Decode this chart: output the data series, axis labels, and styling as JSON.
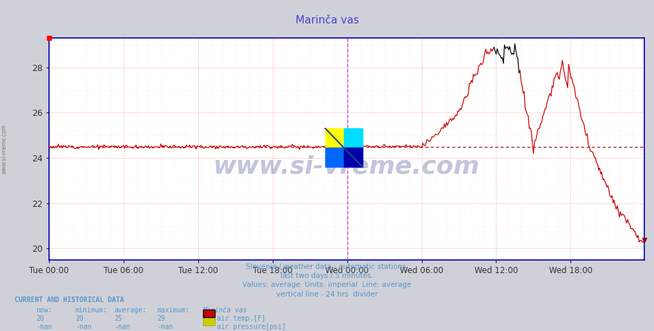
{
  "title": "Marinča vas",
  "title_color": "#4444cc",
  "bg_color": "#d0d0d8",
  "plot_bg_color": "#ffffff",
  "ylim": [
    19.5,
    29.3
  ],
  "yticks": [
    20,
    22,
    24,
    26,
    28
  ],
  "grid_major_color": "#ffaaaa",
  "grid_minor_color": "#ffdddd",
  "avg_line_y": 24.5,
  "avg_line_color": "#aa0000",
  "divider_x": 288,
  "divider_color": "#cc44cc",
  "line_color_red": "#cc0000",
  "line_color_black": "#000000",
  "black_seg_start": 430,
  "black_seg_end": 455,
  "subtitle_lines": [
    "Slovenia / weather data - automatic stations.",
    "last two days / 5 minutes.",
    "Values: average  Units: imperial  Line: average",
    "vertical line - 24 hrs  divider"
  ],
  "subtitle_color": "#5599cc",
  "footer_color": "#5599cc",
  "watermark_text": "www.si-vreme.com",
  "watermark_color": "#334488",
  "watermark_alpha": 0.3,
  "n_points": 576,
  "x_tick_labels": [
    "Tue 00:00",
    "Tue 06:00",
    "Tue 12:00",
    "Tue 18:00",
    "Wed 00:00",
    "Wed 06:00",
    "Wed 12:00",
    "Wed 18:00"
  ],
  "x_tick_positions": [
    0,
    72,
    144,
    216,
    288,
    360,
    432,
    504
  ],
  "legend_colors": [
    "#cc0000",
    "#cccc00"
  ],
  "legend_labels": [
    "air temp.[F]",
    "air pressure[psi]"
  ],
  "stats_now": "20",
  "stats_min": "20",
  "stats_avg": "25",
  "stats_max": "29",
  "side_text": "www.si-vreme.com",
  "axis_color": "#0000aa",
  "tick_color": "#333333",
  "end_marker_color": "#880000"
}
